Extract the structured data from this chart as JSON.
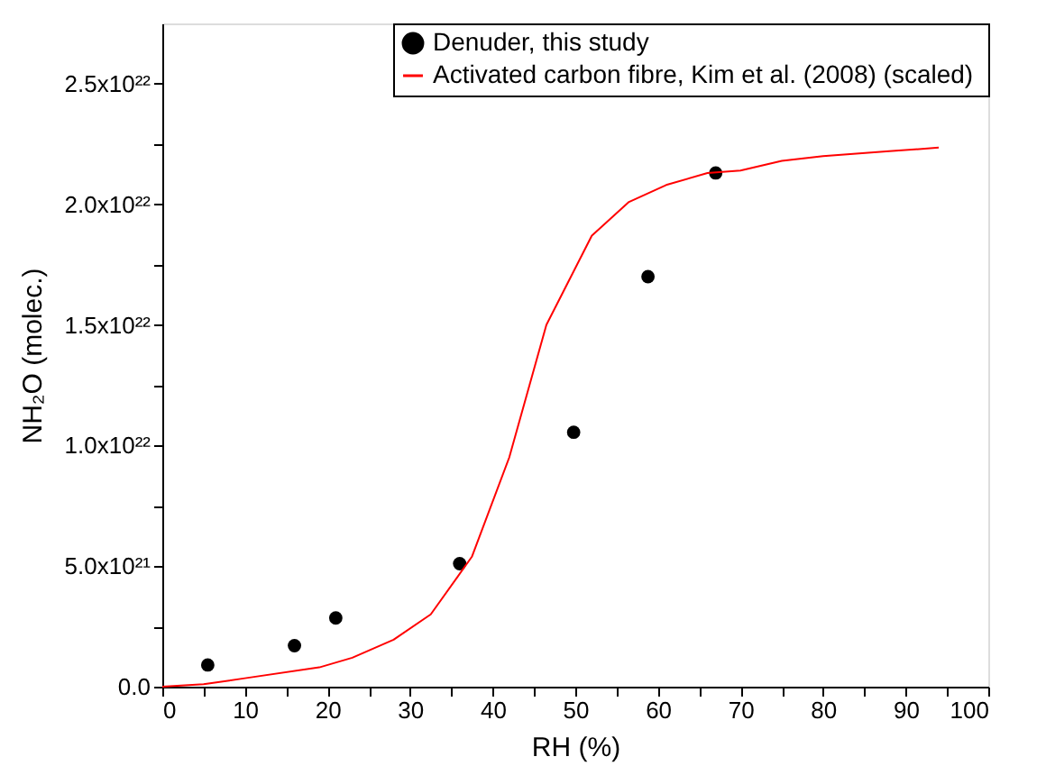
{
  "chart_data": {
    "type": "scatter",
    "xlabel": "RH (%)",
    "ylabel": "NH₂O (molec.)",
    "xlim": [
      0,
      100
    ],
    "xticks": [
      0,
      {
        "value": 5,
        "label": null
      },
      10,
      {
        "value": 15,
        "label": null
      },
      20,
      {
        "value": 25,
        "label": null
      },
      30,
      {
        "value": 35,
        "label": null
      },
      40,
      {
        "value": 45,
        "label": null
      },
      50,
      {
        "value": 55,
        "label": null
      },
      60,
      {
        "value": 65,
        "label": null
      },
      70,
      {
        "value": 75,
        "label": null
      },
      80,
      {
        "value": 85,
        "label": null
      },
      90,
      {
        "value": 95,
        "label": null
      },
      100
    ],
    "ylim": [
      0,
      2.75e+22
    ],
    "yticks": [
      {
        "value": 0,
        "label": "0.0"
      },
      {
        "value": 2.5e+21,
        "label": null
      },
      {
        "value": 5e+21,
        "label": "5.0x10²¹"
      },
      {
        "value": 7.5e+21,
        "label": null
      },
      {
        "value": 1e+22,
        "label": "1.0x10²²"
      },
      {
        "value": 1.25e+22,
        "label": null
      },
      {
        "value": 1.5e+22,
        "label": "1.5x10²²"
      },
      {
        "value": 1.75e+22,
        "label": null
      },
      {
        "value": 2e+22,
        "label": "2.0x10²²"
      },
      {
        "value": 2.25e+22,
        "label": null
      },
      {
        "value": 2.5e+22,
        "label": "2.5x10²²"
      }
    ],
    "grid": false,
    "legend": "top right",
    "series": [
      {
        "name": "Denuder, this study",
        "marker": "circle",
        "color": "#000000",
        "x": [
          5.5,
          16,
          21,
          36,
          49.8,
          58.8,
          67
        ],
        "values": [
          9e+20,
          1.7e+21,
          2.85e+21,
          5.1e+21,
          1.055e+22,
          1.7e+22,
          2.13e+22
        ]
      },
      {
        "name": "Activated  carbon fibre, Kim et al. (2008) (scaled)",
        "type": "line",
        "marker": "none",
        "line_style": "solid",
        "color": "#ff0000",
        "x": [
          0,
          5,
          10,
          19,
          23,
          28,
          32.5,
          37.5,
          42,
          46.5,
          52,
          56.5,
          61,
          66,
          70,
          75,
          80,
          88,
          94
        ],
        "values": [
          0,
          1e+20,
          3.5e+20,
          8e+20,
          1.2e+21,
          1.95e+21,
          3e+21,
          5.4e+21,
          9.5e+21,
          1.5e+22,
          1.87e+22,
          2.01e+22,
          2.08e+22,
          2.13e+22,
          2.14e+22,
          2.18e+22,
          2.2e+22,
          2.22e+22,
          2.235e+22
        ]
      }
    ]
  }
}
